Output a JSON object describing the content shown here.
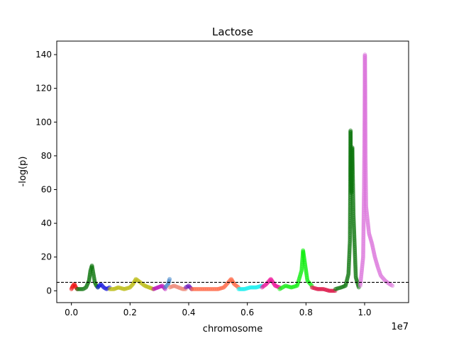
{
  "chart_data": {
    "type": "scatter",
    "title": "Lactose",
    "xlabel": "chromosome",
    "ylabel": "-log(p)",
    "x_offset_label": "1e7",
    "xlim": [
      -500000,
      11500000
    ],
    "ylim": [
      -7,
      148
    ],
    "x_ticks": [
      0.0,
      0.2,
      0.4,
      0.6,
      0.8,
      1.0
    ],
    "x_tick_labels": [
      "0.0",
      "0.2",
      "0.4",
      "0.6",
      "0.8",
      "1.0"
    ],
    "y_ticks": [
      0,
      20,
      40,
      60,
      80,
      100,
      120,
      140
    ],
    "y_tick_labels": [
      "0",
      "20",
      "40",
      "60",
      "80",
      "100",
      "120",
      "140"
    ],
    "threshold": 5,
    "threshold_style": "dashed black",
    "grid": false,
    "legend": "none",
    "series": [
      {
        "color": "#ee1111",
        "x": [
          0,
          50000,
          100000,
          150000,
          200000
        ],
        "y": [
          1,
          3,
          4,
          2,
          1
        ]
      },
      {
        "color": "#117711",
        "x": [
          200000,
          300000,
          400000,
          500000,
          600000,
          650000,
          700000,
          750000,
          800000,
          850000,
          900000
        ],
        "y": [
          1,
          1,
          1,
          2,
          6,
          12,
          15,
          10,
          5,
          3,
          2
        ]
      },
      {
        "color": "#1111dd",
        "x": [
          900000,
          1000000,
          1100000,
          1200000,
          1300000
        ],
        "y": [
          2,
          4,
          2,
          1,
          2
        ]
      },
      {
        "color": "#bbbb11",
        "x": [
          1300000,
          1450000,
          1600000,
          1800000,
          2000000,
          2100000,
          2200000,
          2350000,
          2500000,
          2650000,
          2800000
        ],
        "y": [
          1,
          1,
          2,
          1,
          2,
          4,
          7,
          5,
          3,
          2,
          1
        ]
      },
      {
        "color": "#bb11bb",
        "x": [
          2800000,
          2950000,
          3100000,
          3200000
        ],
        "y": [
          1,
          2,
          3,
          1
        ]
      },
      {
        "color": "#4488cc",
        "x": [
          3200000,
          3300000,
          3350000
        ],
        "y": [
          2,
          4,
          7
        ]
      },
      {
        "color": "#ee8877",
        "x": [
          3350000,
          3500000,
          3650000,
          3800000,
          3900000
        ],
        "y": [
          2,
          3,
          2,
          1,
          1
        ]
      },
      {
        "color": "#6611bb",
        "x": [
          3900000,
          4000000,
          4100000
        ],
        "y": [
          2,
          3,
          1
        ]
      },
      {
        "color": "#ff6644",
        "x": [
          4100000,
          4400000,
          4700000,
          5000000,
          5200000,
          5350000,
          5450000,
          5550000,
          5700000
        ],
        "y": [
          1,
          1,
          1,
          1,
          2,
          5,
          7,
          4,
          2
        ]
      },
      {
        "color": "#11eeee",
        "x": [
          5700000,
          5900000,
          6100000,
          6300000,
          6500000
        ],
        "y": [
          1,
          1,
          2,
          2,
          3
        ]
      },
      {
        "color": "#ee1199",
        "x": [
          6500000,
          6650000,
          6800000,
          6950000,
          7100000
        ],
        "y": [
          2,
          4,
          7,
          3,
          2
        ]
      },
      {
        "color": "#11ee11",
        "x": [
          7100000,
          7300000,
          7500000,
          7700000,
          7850000,
          7900000,
          7950000,
          8050000,
          8200000
        ],
        "y": [
          1,
          3,
          2,
          3,
          12,
          24,
          18,
          6,
          3
        ]
      },
      {
        "color": "#dd1144",
        "x": [
          8200000,
          8400000,
          8600000,
          8800000,
          9000000
        ],
        "y": [
          2,
          1,
          1,
          0,
          0
        ]
      },
      {
        "color": "#117711",
        "x": [
          9000000,
          9200000,
          9350000,
          9450000,
          9500000,
          9520000,
          9530000,
          9550000,
          9580000,
          9620000,
          9700000,
          9800000
        ],
        "y": [
          1,
          2,
          3,
          10,
          30,
          95,
          70,
          58,
          85,
          45,
          8,
          2
        ]
      },
      {
        "color": "#dd77dd",
        "x": [
          9850000,
          9950000,
          9980000,
          10000000,
          10010000,
          10020000,
          10030000,
          10050000,
          10150000,
          10250000,
          10350000,
          10450000,
          10550000,
          10700000,
          10850000,
          10950000
        ],
        "y": [
          3,
          20,
          60,
          105,
          140,
          120,
          80,
          50,
          34,
          28,
          20,
          14,
          9,
          6,
          4,
          3
        ]
      }
    ]
  }
}
